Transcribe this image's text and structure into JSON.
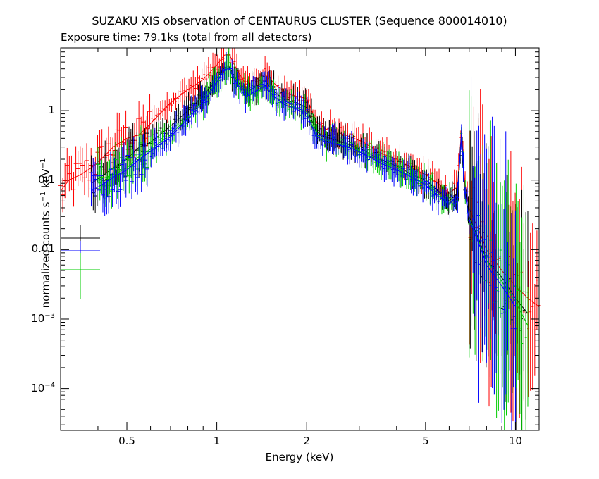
{
  "chart_data": {
    "type": "scatter",
    "title": "SUZAKU XIS observation of CENTAURUS CLUSTER (Sequence 800014010)",
    "subtitle": "Exposure time: 79.1ks (total from all detectors)",
    "xlabel": "Energy (keV)",
    "ylabel_parts": [
      "normalized counts s",
      "−1",
      " keV",
      "−1"
    ],
    "x_scale": "log",
    "y_scale": "log",
    "xlim": [
      0.3,
      12
    ],
    "ylim": [
      2.5e-05,
      8
    ],
    "x_ticks": [
      {
        "value": 0.5,
        "label": "0.5"
      },
      {
        "value": 1,
        "label": "1"
      },
      {
        "value": 2,
        "label": "2"
      },
      {
        "value": 5,
        "label": "5"
      },
      {
        "value": 10,
        "label": "10"
      }
    ],
    "y_ticks": [
      {
        "value": 1,
        "label": "1",
        "base": "",
        "exp": ""
      },
      {
        "value": 0.1,
        "label": "0.1",
        "base": "",
        "exp": ""
      },
      {
        "value": 0.01,
        "label": "0.01",
        "base": "",
        "exp": ""
      },
      {
        "value": 0.001,
        "label": "",
        "base": "10",
        "exp": "−3"
      },
      {
        "value": 0.0001,
        "label": "",
        "base": "10",
        "exp": "−4"
      }
    ],
    "legend_placement": "left, below plot curves",
    "grid": false,
    "series": [
      {
        "color": "#ff0000",
        "points": [
          [
            0.3,
            0.07
          ],
          [
            0.32,
            0.1
          ],
          [
            0.35,
            0.12
          ],
          [
            0.38,
            0.15
          ],
          [
            0.42,
            0.22
          ],
          [
            0.45,
            0.3
          ],
          [
            0.5,
            0.4
          ],
          [
            0.55,
            0.45
          ],
          [
            0.6,
            0.65
          ],
          [
            0.7,
            1.3
          ],
          [
            0.8,
            2.0
          ],
          [
            0.9,
            2.8
          ],
          [
            1.0,
            4.5
          ],
          [
            1.06,
            6.3
          ],
          [
            1.1,
            6.5
          ],
          [
            1.15,
            4.4
          ],
          [
            1.25,
            2.4
          ],
          [
            1.35,
            2.8
          ],
          [
            1.45,
            3.3
          ],
          [
            1.55,
            2.5
          ],
          [
            1.7,
            1.8
          ],
          [
            1.85,
            1.6
          ],
          [
            2.0,
            1.5
          ],
          [
            2.15,
            0.7
          ],
          [
            2.3,
            0.55
          ],
          [
            2.5,
            0.5
          ],
          [
            2.8,
            0.42
          ],
          [
            3.1,
            0.35
          ],
          [
            3.5,
            0.25
          ],
          [
            4.0,
            0.2
          ],
          [
            4.5,
            0.15
          ],
          [
            5.0,
            0.12
          ],
          [
            5.5,
            0.09
          ],
          [
            6.0,
            0.065
          ],
          [
            6.4,
            0.08
          ],
          [
            6.6,
            0.55
          ],
          [
            6.75,
            0.1
          ],
          [
            7.0,
            0.04
          ],
          [
            7.5,
            0.02
          ],
          [
            8.0,
            0.01
          ],
          [
            9.0,
            0.005
          ],
          [
            10.0,
            0.003
          ],
          [
            11.0,
            0.002
          ],
          [
            12.0,
            0.0015
          ]
        ]
      },
      {
        "color": "#000000",
        "points": [
          [
            0.38,
            0.09
          ],
          [
            0.42,
            0.12
          ],
          [
            0.45,
            0.15
          ],
          [
            0.5,
            0.2
          ],
          [
            0.55,
            0.3
          ],
          [
            0.6,
            0.35
          ],
          [
            0.7,
            0.6
          ],
          [
            0.8,
            1.0
          ],
          [
            0.9,
            1.6
          ],
          [
            1.0,
            2.9
          ],
          [
            1.06,
            4.2
          ],
          [
            1.1,
            4.3
          ],
          [
            1.15,
            3.0
          ],
          [
            1.25,
            1.8
          ],
          [
            1.35,
            2.2
          ],
          [
            1.45,
            2.7
          ],
          [
            1.55,
            1.9
          ],
          [
            1.7,
            1.4
          ],
          [
            1.85,
            1.3
          ],
          [
            2.0,
            1.1
          ],
          [
            2.15,
            0.5
          ],
          [
            2.3,
            0.42
          ],
          [
            2.5,
            0.38
          ],
          [
            2.8,
            0.32
          ],
          [
            3.1,
            0.27
          ],
          [
            3.5,
            0.2
          ],
          [
            4.0,
            0.16
          ],
          [
            4.5,
            0.12
          ],
          [
            5.0,
            0.1
          ],
          [
            5.5,
            0.07
          ],
          [
            6.0,
            0.05
          ],
          [
            6.4,
            0.065
          ],
          [
            6.6,
            0.5
          ],
          [
            6.75,
            0.08
          ],
          [
            7.0,
            0.03
          ],
          [
            7.5,
            0.015
          ],
          [
            8.0,
            0.007
          ],
          [
            9.0,
            0.004
          ],
          [
            10.0,
            0.002
          ],
          [
            11.0,
            0.0012
          ]
        ]
      },
      {
        "color": "#00cc00",
        "points": [
          [
            0.4,
            0.1
          ],
          [
            0.45,
            0.12
          ],
          [
            0.5,
            0.15
          ],
          [
            0.55,
            0.22
          ],
          [
            0.6,
            0.28
          ],
          [
            0.7,
            0.45
          ],
          [
            0.8,
            0.8
          ],
          [
            0.9,
            1.4
          ],
          [
            1.0,
            2.6
          ],
          [
            1.06,
            4.0
          ],
          [
            1.1,
            4.1
          ],
          [
            1.15,
            2.8
          ],
          [
            1.25,
            1.6
          ],
          [
            1.35,
            1.8
          ],
          [
            1.45,
            2.2
          ],
          [
            1.55,
            1.6
          ],
          [
            1.7,
            1.2
          ],
          [
            1.85,
            1.1
          ],
          [
            2.0,
            0.95
          ],
          [
            2.15,
            0.45
          ],
          [
            2.3,
            0.38
          ],
          [
            2.5,
            0.35
          ],
          [
            2.8,
            0.3
          ],
          [
            3.1,
            0.25
          ],
          [
            3.5,
            0.19
          ],
          [
            4.0,
            0.15
          ],
          [
            4.5,
            0.11
          ],
          [
            5.0,
            0.09
          ],
          [
            5.5,
            0.065
          ],
          [
            6.0,
            0.045
          ],
          [
            6.4,
            0.06
          ],
          [
            6.6,
            0.48
          ],
          [
            6.75,
            0.07
          ],
          [
            7.0,
            0.028
          ],
          [
            7.5,
            0.014
          ],
          [
            8.0,
            0.007
          ],
          [
            9.0,
            0.0035
          ],
          [
            10.0,
            0.0018
          ],
          [
            11.0,
            0.0008
          ]
        ]
      },
      {
        "color": "#0000ff",
        "points": [
          [
            0.38,
            0.07
          ],
          [
            0.42,
            0.09
          ],
          [
            0.45,
            0.11
          ],
          [
            0.5,
            0.14
          ],
          [
            0.55,
            0.2
          ],
          [
            0.6,
            0.26
          ],
          [
            0.7,
            0.42
          ],
          [
            0.8,
            0.75
          ],
          [
            0.9,
            1.3
          ],
          [
            1.0,
            2.5
          ],
          [
            1.06,
            3.9
          ],
          [
            1.1,
            4.0
          ],
          [
            1.15,
            2.7
          ],
          [
            1.25,
            1.6
          ],
          [
            1.35,
            1.9
          ],
          [
            1.45,
            2.3
          ],
          [
            1.55,
            1.6
          ],
          [
            1.7,
            1.2
          ],
          [
            1.85,
            1.05
          ],
          [
            2.0,
            0.9
          ],
          [
            2.15,
            0.42
          ],
          [
            2.3,
            0.36
          ],
          [
            2.5,
            0.33
          ],
          [
            2.8,
            0.29
          ],
          [
            3.1,
            0.24
          ],
          [
            3.5,
            0.18
          ],
          [
            4.0,
            0.14
          ],
          [
            4.5,
            0.11
          ],
          [
            5.0,
            0.085
          ],
          [
            5.5,
            0.06
          ],
          [
            6.0,
            0.045
          ],
          [
            6.4,
            0.06
          ],
          [
            6.6,
            0.5
          ],
          [
            6.75,
            0.07
          ],
          [
            7.0,
            0.027
          ],
          [
            7.5,
            0.013
          ],
          [
            8.0,
            0.006
          ],
          [
            9.0,
            0.003
          ],
          [
            10.0,
            0.0015
          ]
        ]
      }
    ]
  }
}
